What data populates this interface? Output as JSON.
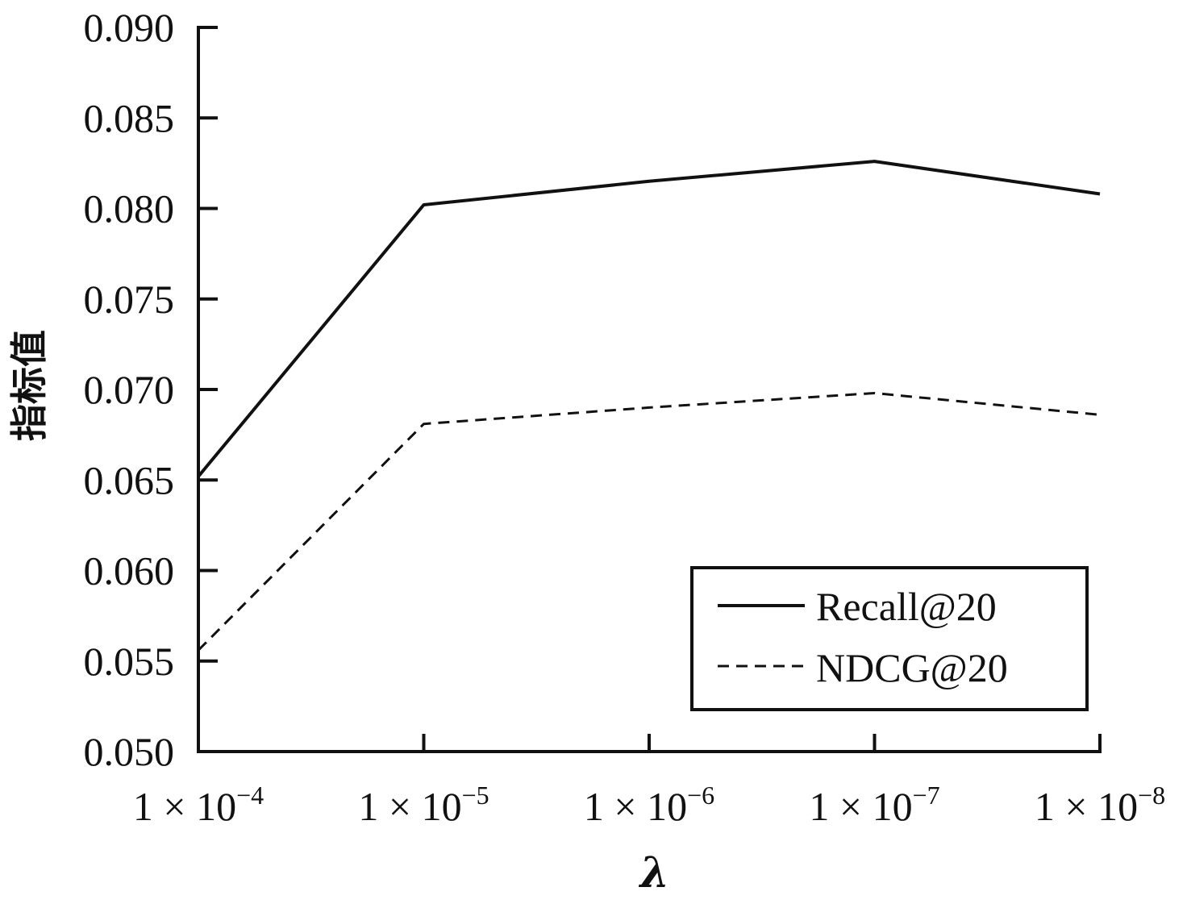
{
  "chart_data": {
    "type": "line",
    "categories": [
      "1×10⁻⁴",
      "1×10⁻⁵",
      "1×10⁻⁶",
      "1×10⁻⁷",
      "1×10⁻⁸"
    ],
    "x_ticks": [
      {
        "base": "1 × 10",
        "exp": "−4"
      },
      {
        "base": "1 × 10",
        "exp": "−5"
      },
      {
        "base": "1 × 10",
        "exp": "−6"
      },
      {
        "base": "1 × 10",
        "exp": "−7"
      },
      {
        "base": "1 × 10",
        "exp": "−8"
      }
    ],
    "series": [
      {
        "name": "Recall@20",
        "style": "solid",
        "values": [
          0.0652,
          0.0802,
          0.0815,
          0.0826,
          0.0808
        ]
      },
      {
        "name": "NDCG@20",
        "style": "dashed",
        "values": [
          0.0556,
          0.0681,
          0.069,
          0.0698,
          0.0686
        ]
      }
    ],
    "xlabel": "λ",
    "ylabel": "指标值",
    "ylim": [
      0.05,
      0.09
    ],
    "yticks": [
      "0.050",
      "0.055",
      "0.060",
      "0.065",
      "0.070",
      "0.075",
      "0.080",
      "0.085",
      "0.090"
    ],
    "grid": false,
    "legend_position": "bottom-right",
    "colors": {
      "line": "#111111",
      "axis": "#111111"
    }
  }
}
